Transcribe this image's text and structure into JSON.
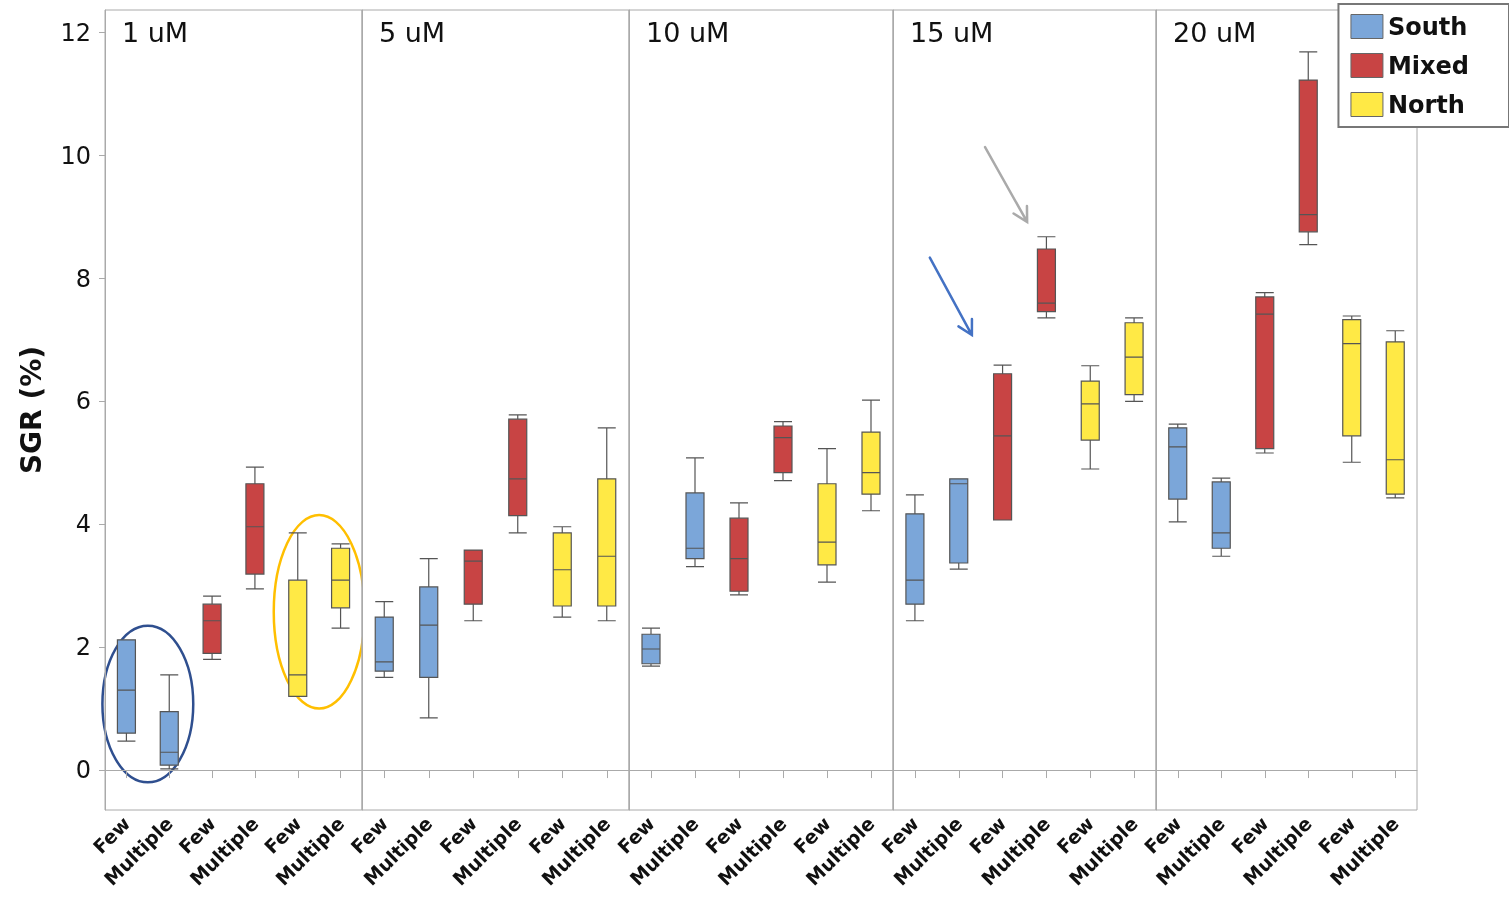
{
  "chart_data": [
    {
      "type": "box",
      "title": "1 uM",
      "ylabel": "SGR (%)",
      "categories": [
        "Few",
        "Multiple",
        "Few",
        "Multiple",
        "Few",
        "Multiple"
      ],
      "ylim": [
        -0.65,
        12.37
      ],
      "yticks": [
        0,
        2,
        4,
        6,
        8,
        10,
        12
      ],
      "series": [
        {
          "color": "#7ba6d9",
          "boxes": [
            {
              "low": 0.47,
              "q1": 0.6,
              "median": 1.3,
              "q3": 2.12,
              "high": 2.12
            },
            {
              "low": 0.02,
              "q1": 0.08,
              "median": 0.29,
              "q3": 0.95,
              "high": 1.55
            },
            null,
            null,
            null,
            null
          ]
        },
        {
          "color": "#c84444",
          "boxes": [
            null,
            null,
            {
              "low": 1.8,
              "q1": 1.9,
              "median": 2.43,
              "q3": 2.7,
              "high": 2.83
            },
            {
              "low": 2.95,
              "q1": 3.19,
              "median": 3.96,
              "q3": 4.66,
              "high": 4.93
            },
            null,
            null
          ]
        },
        {
          "color": "#ffe945",
          "boxes": [
            null,
            null,
            null,
            null,
            {
              "low": 1.2,
              "q1": 1.2,
              "median": 1.55,
              "q3": 3.09,
              "high": 3.86
            },
            {
              "low": 2.31,
              "q1": 2.64,
              "median": 3.09,
              "q3": 3.61,
              "high": 3.68
            }
          ]
        }
      ]
    },
    {
      "type": "box",
      "title": "5 uM",
      "categories": [
        "Few",
        "Multiple",
        "Few",
        "Multiple",
        "Few",
        "Multiple"
      ],
      "ylim": [
        -0.65,
        12.37
      ],
      "yticks": [
        0,
        2,
        4,
        6,
        8,
        10,
        12
      ],
      "tick_labels": "x",
      "series": [
        {
          "color": "#7ba6d9",
          "boxes": [
            {
              "low": 1.51,
              "q1": 1.61,
              "median": 1.76,
              "q3": 2.49,
              "high": 2.74
            },
            {
              "low": 0.85,
              "q1": 1.51,
              "median": 2.36,
              "q3": 2.98,
              "high": 3.44
            },
            null,
            null,
            null,
            null
          ]
        },
        {
          "color": "#c84444",
          "boxes": [
            null,
            null,
            {
              "low": 2.43,
              "q1": 2.7,
              "median": 3.4,
              "q3": 3.58,
              "high": 3.58
            },
            {
              "low": 3.86,
              "q1": 4.14,
              "median": 4.74,
              "q3": 5.71,
              "high": 5.78
            },
            null,
            null
          ]
        },
        {
          "color": "#ffe945",
          "boxes": [
            null,
            null,
            null,
            null,
            {
              "low": 2.49,
              "q1": 2.67,
              "median": 3.26,
              "q3": 3.86,
              "high": 3.96
            },
            {
              "low": 2.43,
              "q1": 2.67,
              "median": 3.48,
              "q3": 4.74,
              "high": 5.57
            }
          ]
        }
      ]
    },
    {
      "type": "box",
      "title": "10 uM",
      "categories": [
        "Few",
        "Multiple",
        "Few",
        "Multiple",
        "Few",
        "Multiple"
      ],
      "ylim": [
        -0.65,
        12.37
      ],
      "yticks": [
        0,
        2,
        4,
        6,
        8,
        10,
        12
      ],
      "tick_labels": "x",
      "series": [
        {
          "color": "#7ba6d9",
          "boxes": [
            {
              "low": 1.69,
              "q1": 1.73,
              "median": 1.97,
              "q3": 2.21,
              "high": 2.31
            },
            {
              "low": 3.31,
              "q1": 3.44,
              "median": 3.61,
              "q3": 4.51,
              "high": 5.08
            },
            null,
            null,
            null,
            null
          ]
        },
        {
          "color": "#c84444",
          "boxes": [
            null,
            null,
            {
              "low": 2.85,
              "q1": 2.91,
              "median": 3.44,
              "q3": 4.1,
              "high": 4.35
            },
            {
              "low": 4.71,
              "q1": 4.84,
              "median": 5.41,
              "q3": 5.6,
              "high": 5.67
            },
            null,
            null
          ]
        },
        {
          "color": "#ffe945",
          "boxes": [
            null,
            null,
            null,
            null,
            {
              "low": 3.06,
              "q1": 3.34,
              "median": 3.71,
              "q3": 4.66,
              "high": 5.23
            },
            {
              "low": 4.22,
              "q1": 4.49,
              "median": 4.84,
              "q3": 5.5,
              "high": 6.02
            }
          ]
        }
      ]
    },
    {
      "type": "box",
      "title": "15 uM",
      "categories": [
        "Few",
        "Multiple",
        "Few",
        "Multiple",
        "Few",
        "Multiple"
      ],
      "ylim": [
        -0.65,
        12.37
      ],
      "yticks": [
        0,
        2,
        4,
        6,
        8,
        10,
        12
      ],
      "tick_labels": "x",
      "series": [
        {
          "color": "#7ba6d9",
          "boxes": [
            {
              "low": 2.43,
              "q1": 2.7,
              "median": 3.09,
              "q3": 4.17,
              "high": 4.48
            },
            {
              "low": 3.27,
              "q1": 3.37,
              "median": 4.66,
              "q3": 4.74,
              "high": 4.74
            },
            null,
            null,
            null,
            null
          ]
        },
        {
          "color": "#c84444",
          "boxes": [
            null,
            null,
            {
              "low": 4.07,
              "q1": 4.07,
              "median": 5.44,
              "q3": 6.45,
              "high": 6.59
            },
            {
              "low": 7.36,
              "q1": 7.46,
              "median": 7.6,
              "q3": 8.48,
              "high": 8.68
            },
            null,
            null
          ]
        },
        {
          "color": "#ffe945",
          "boxes": [
            null,
            null,
            null,
            null,
            {
              "low": 4.9,
              "q1": 5.37,
              "median": 5.96,
              "q3": 6.33,
              "high": 6.58
            },
            {
              "low": 6.0,
              "q1": 6.11,
              "median": 6.72,
              "q3": 7.28,
              "high": 7.36
            }
          ]
        }
      ]
    },
    {
      "type": "box",
      "title": "20 uM",
      "categories": [
        "Few",
        "Multiple",
        "Few",
        "Multiple",
        "Few",
        "Multiple"
      ],
      "ylim": [
        -0.65,
        12.37
      ],
      "yticks": [
        0,
        2,
        4,
        6,
        8,
        10,
        12
      ],
      "tick_labels": "x",
      "legend": "top right",
      "series": [
        {
          "name": "South",
          "color": "#7ba6d9",
          "boxes": [
            {
              "low": 4.04,
              "q1": 4.41,
              "median": 5.26,
              "q3": 5.57,
              "high": 5.63
            },
            {
              "low": 3.48,
              "q1": 3.61,
              "median": 3.86,
              "q3": 4.69,
              "high": 4.75
            },
            null,
            null,
            null,
            null
          ]
        },
        {
          "name": "Mixed",
          "color": "#c84444",
          "boxes": [
            null,
            null,
            {
              "low": 5.16,
              "q1": 5.23,
              "median": 7.42,
              "q3": 7.7,
              "high": 7.77
            },
            {
              "low": 8.55,
              "q1": 8.76,
              "median": 9.04,
              "q3": 11.23,
              "high": 11.69
            },
            null,
            null
          ]
        },
        {
          "name": "North",
          "color": "#ffe945",
          "boxes": [
            null,
            null,
            null,
            null,
            {
              "low": 5.01,
              "q1": 5.44,
              "median": 6.94,
              "q3": 7.33,
              "high": 7.39
            },
            {
              "low": 4.43,
              "q1": 4.49,
              "median": 5.05,
              "q3": 6.97,
              "high": 7.15
            }
          ]
        }
      ]
    }
  ]
}
